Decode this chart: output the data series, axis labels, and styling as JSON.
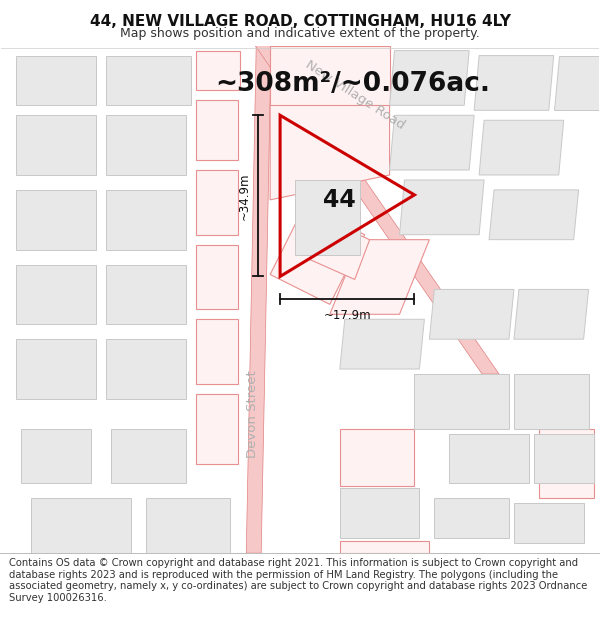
{
  "title_line1": "44, NEW VILLAGE ROAD, COTTINGHAM, HU16 4LY",
  "title_line2": "Map shows position and indicative extent of the property.",
  "footer_text": "Contains OS data © Crown copyright and database right 2021. This information is subject to Crown copyright and database rights 2023 and is reproduced with the permission of HM Land Registry. The polygons (including the associated geometry, namely x, y co-ordinates) are subject to Crown copyright and database rights 2023 Ordnance Survey 100026316.",
  "area_label": "~308m²/~0.076ac.",
  "property_number": "44",
  "dim_vertical": "~34.9m",
  "dim_horizontal": "~17.9m",
  "map_bg": "#ffffff",
  "road_fill": "#f7c8c8",
  "road_edge": "#e08080",
  "building_fill": "#e8e8e8",
  "building_stroke": "#c8c8c8",
  "pink_fill": "#fff2f2",
  "pink_stroke": "#e89090",
  "property_color": "#cc0000",
  "dim_color": "#111111",
  "street_label_color": "#b0b0b0",
  "title_fontsize": 11,
  "subtitle_fontsize": 9,
  "footer_fontsize": 7.2,
  "area_fontsize": 19,
  "number_fontsize": 17,
  "dim_fontsize": 8.5,
  "street_fontsize": 9.5
}
